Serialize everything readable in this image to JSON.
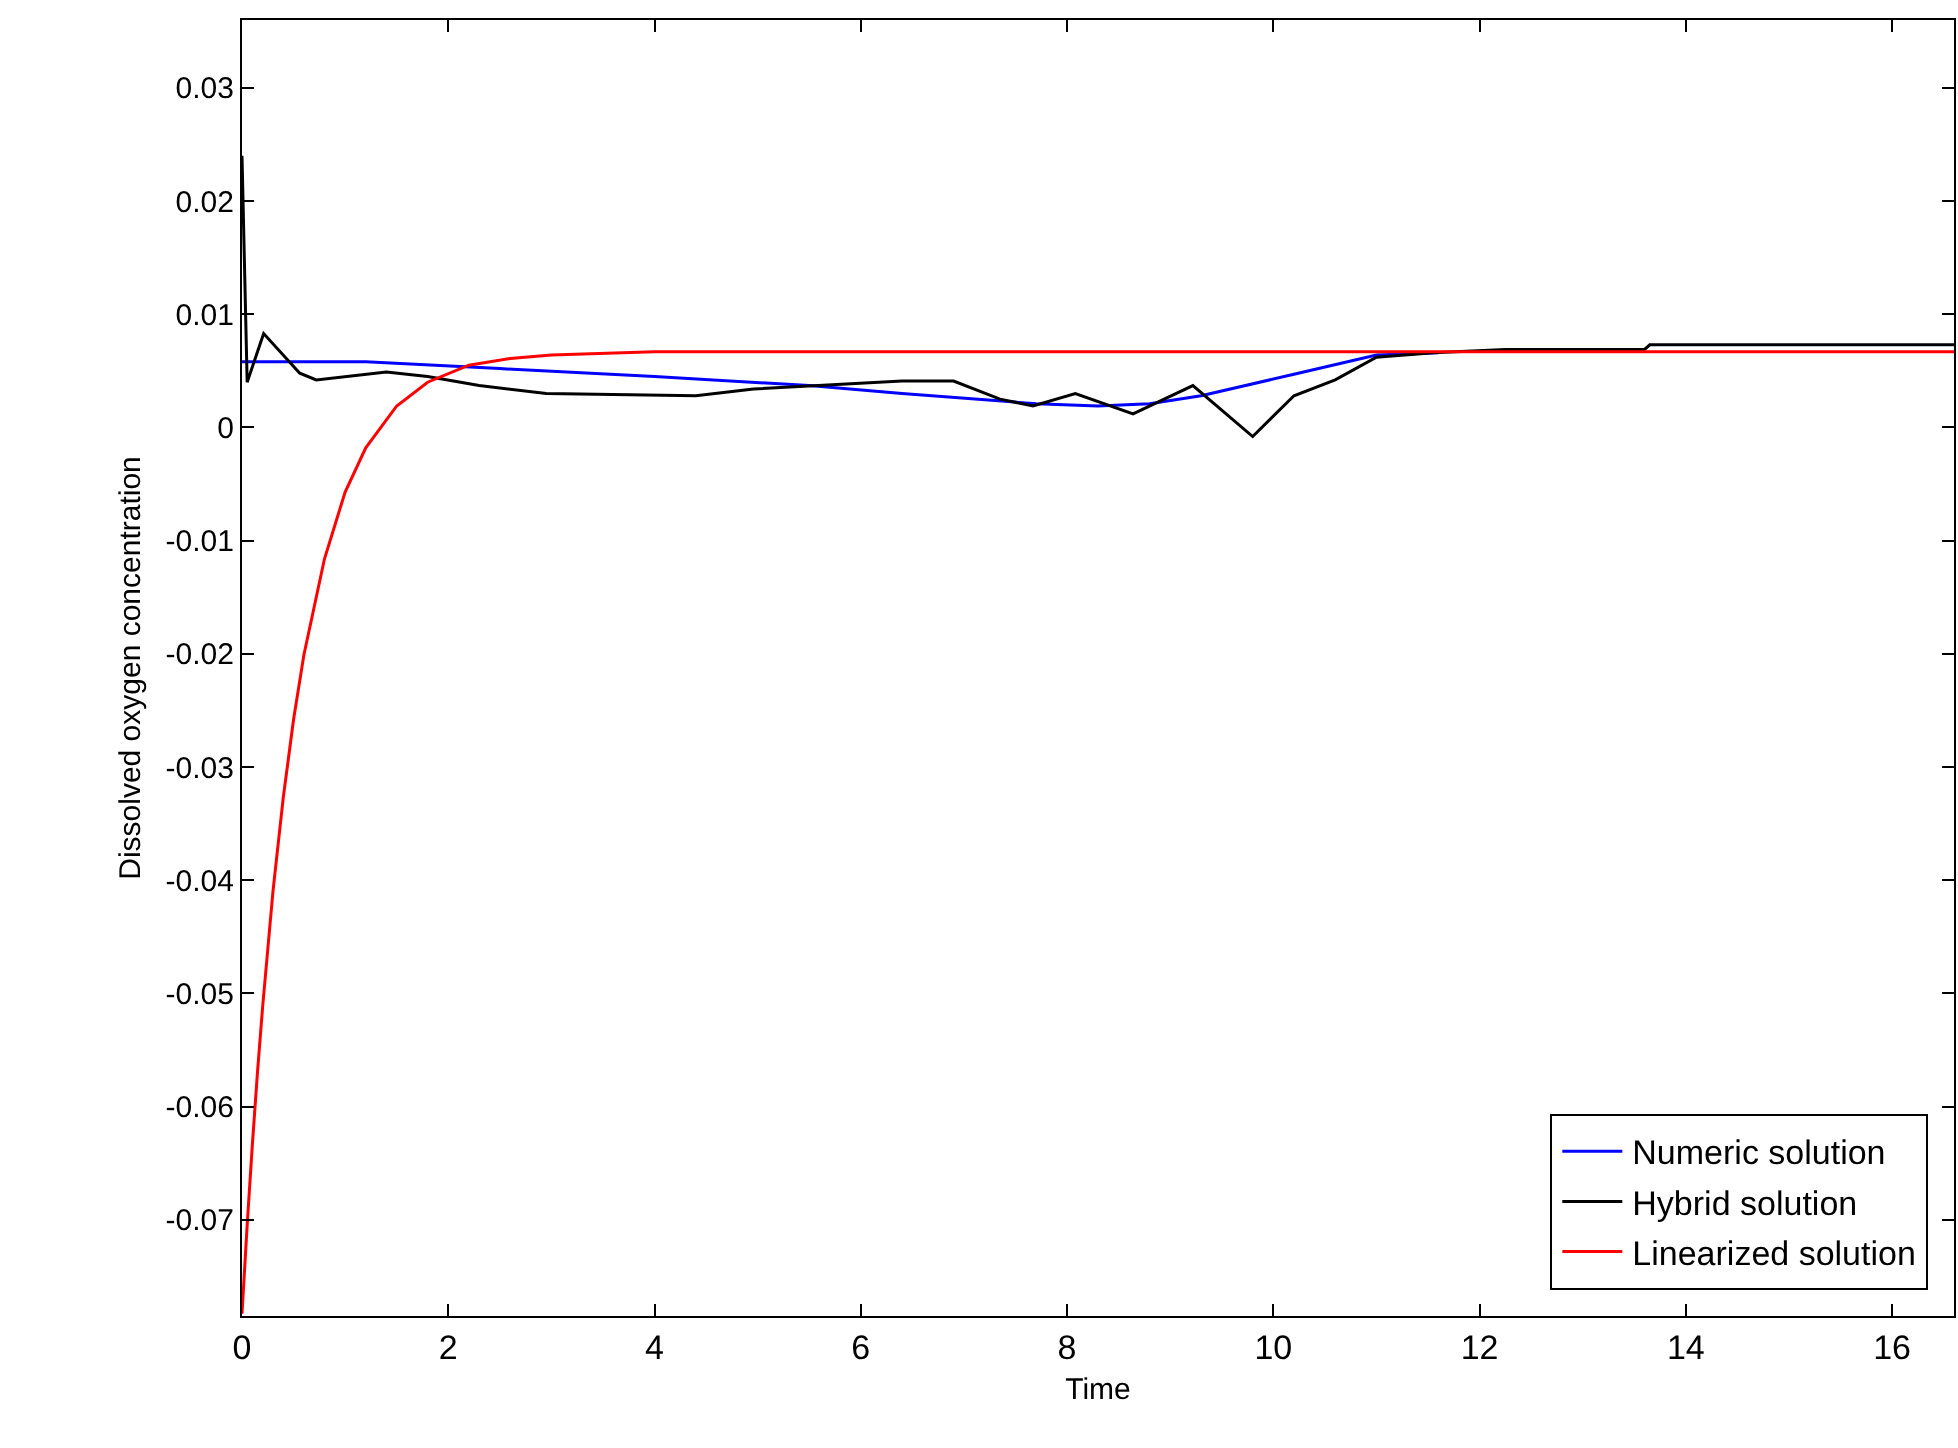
{
  "chart_data": {
    "type": "line",
    "xlabel": "Time",
    "ylabel": "Dissolved oxygen concentration",
    "xlim": [
      0,
      16.6
    ],
    "ylim": [
      -0.0785,
      0.036
    ],
    "xticks": [
      0,
      2,
      4,
      6,
      8,
      10,
      12,
      14,
      16
    ],
    "yticks": [
      -0.07,
      -0.06,
      -0.05,
      -0.04,
      -0.03,
      -0.02,
      -0.01,
      0,
      0.01,
      0.02,
      0.03
    ],
    "grid": false,
    "legend": "bottom right",
    "marker": "none",
    "line_style": "solid",
    "series": [
      {
        "name": "Numeric solution",
        "color": "#0000ff",
        "x": [
          0,
          1.2,
          2.5,
          4,
          5.5,
          6.4,
          7.7,
          8.3,
          8.8,
          9.3,
          10.2,
          11,
          11.6
        ],
        "values": [
          0.0058,
          0.0058,
          0.0052,
          0.0045,
          0.0037,
          0.003,
          0.0021,
          0.0019,
          0.0021,
          0.0028,
          0.0047,
          0.0064,
          0.0066
        ]
      },
      {
        "name": "Hybrid solution",
        "color": "#000000",
        "x": [
          0,
          0.05,
          0.21,
          0.56,
          0.72,
          1.4,
          1.8,
          2.3,
          2.95,
          4.4,
          4.96,
          6.4,
          6.9,
          7.35,
          7.67,
          8.08,
          8.64,
          9.22,
          9.8,
          10.2,
          10.6,
          11,
          11.55,
          12.25,
          13.6,
          13.65,
          16.6
        ],
        "values": [
          0.024,
          0.004,
          0.0083,
          0.0048,
          0.0042,
          0.0049,
          0.0045,
          0.0037,
          0.003,
          0.0028,
          0.0034,
          0.0041,
          0.0041,
          0.0025,
          0.0019,
          0.003,
          0.0012,
          0.0037,
          -0.0008,
          0.0028,
          0.0042,
          0.0062,
          0.0066,
          0.0069,
          0.0069,
          0.0073,
          0.0073
        ]
      },
      {
        "name": "Linearized solution",
        "color": "#ff0000",
        "x": [
          0,
          0.05,
          0.1,
          0.15,
          0.2,
          0.3,
          0.4,
          0.5,
          0.6,
          0.8,
          1,
          1.2,
          1.5,
          1.8,
          2.2,
          2.6,
          3,
          4,
          16.6
        ],
        "values": [
          -0.0783,
          -0.0705,
          -0.0634,
          -0.057,
          -0.0512,
          -0.041,
          -0.0327,
          -0.0258,
          -0.0201,
          -0.0116,
          -0.0057,
          -0.0018,
          0.0019,
          0.004,
          0.0055,
          0.0061,
          0.0064,
          0.0067,
          0.0067
        ]
      }
    ]
  }
}
